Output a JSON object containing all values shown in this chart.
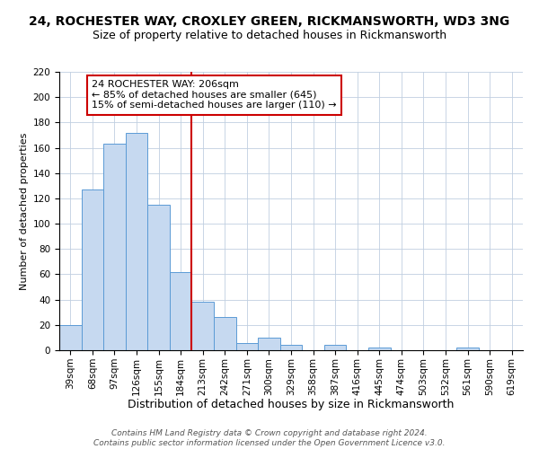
{
  "title": "24, ROCHESTER WAY, CROXLEY GREEN, RICKMANSWORTH, WD3 3NG",
  "subtitle": "Size of property relative to detached houses in Rickmansworth",
  "xlabel": "Distribution of detached houses by size in Rickmansworth",
  "ylabel": "Number of detached properties",
  "footer_line1": "Contains HM Land Registry data © Crown copyright and database right 2024.",
  "footer_line2": "Contains public sector information licensed under the Open Government Licence v3.0.",
  "bar_labels": [
    "39sqm",
    "68sqm",
    "97sqm",
    "126sqm",
    "155sqm",
    "184sqm",
    "213sqm",
    "242sqm",
    "271sqm",
    "300sqm",
    "329sqm",
    "358sqm",
    "387sqm",
    "416sqm",
    "445sqm",
    "474sqm",
    "503sqm",
    "532sqm",
    "561sqm",
    "590sqm",
    "619sqm"
  ],
  "bar_values": [
    20,
    127,
    163,
    172,
    115,
    62,
    38,
    26,
    6,
    10,
    4,
    0,
    4,
    0,
    2,
    0,
    0,
    0,
    2,
    0,
    0
  ],
  "bar_color": "#c6d9f0",
  "bar_edge_color": "#5b9bd5",
  "vline_color": "#cc0000",
  "annotation_title": "24 ROCHESTER WAY: 206sqm",
  "annotation_line1": "← 85% of detached houses are smaller (645)",
  "annotation_line2": "15% of semi-detached houses are larger (110) →",
  "annotation_box_edge": "#cc0000",
  "ylim": [
    0,
    220
  ],
  "yticks": [
    0,
    20,
    40,
    60,
    80,
    100,
    120,
    140,
    160,
    180,
    200,
    220
  ],
  "background_color": "#ffffff",
  "grid_color": "#c0cfe0",
  "title_fontsize": 10,
  "subtitle_fontsize": 9,
  "xlabel_fontsize": 9,
  "ylabel_fontsize": 8,
  "tick_fontsize": 7.5,
  "annotation_fontsize": 8,
  "footer_fontsize": 6.5
}
